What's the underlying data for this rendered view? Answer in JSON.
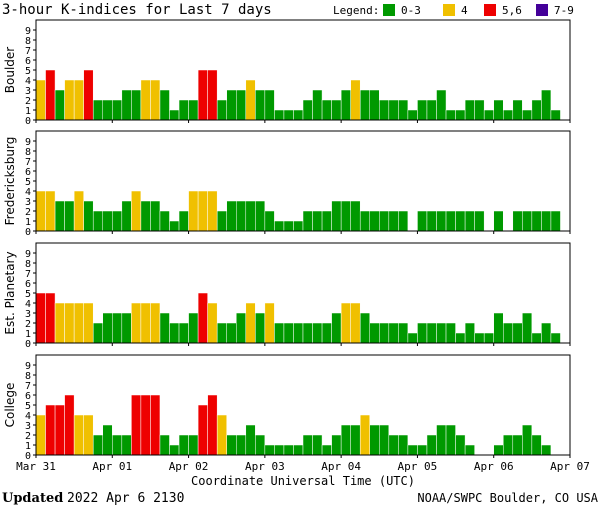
{
  "header": {
    "title": "3-hour K-indices for Last 7 days",
    "legend_title": "Legend:",
    "legend": [
      {
        "label": "0-3",
        "color": "#009900"
      },
      {
        "label": "4",
        "color": "#f0c000"
      },
      {
        "label": "5,6",
        "color": "#ee0000"
      },
      {
        "label": "7-9",
        "color": "#440099"
      }
    ]
  },
  "level_colors": [
    "#009900",
    "#009900",
    "#009900",
    "#009900",
    "#f0c000",
    "#ee0000",
    "#ee0000",
    "#440099",
    "#440099",
    "#440099"
  ],
  "chart_data": [
    {
      "type": "bar",
      "ylabel": "Boulder",
      "ylim": [
        0,
        10
      ],
      "yticks": [
        0,
        1,
        2,
        3,
        4,
        5,
        6,
        7,
        8,
        9
      ],
      "values": [
        4,
        5,
        3,
        4,
        4,
        5,
        2,
        2,
        2,
        3,
        3,
        4,
        4,
        3,
        1,
        2,
        2,
        5,
        5,
        2,
        3,
        3,
        4,
        3,
        3,
        1,
        1,
        1,
        2,
        3,
        2,
        2,
        3,
        4,
        3,
        3,
        2,
        2,
        2,
        1,
        2,
        2,
        3,
        1,
        1,
        2,
        2,
        1,
        2,
        1,
        2,
        1,
        2,
        3,
        1,
        0
      ]
    },
    {
      "type": "bar",
      "ylabel": "Fredericksburg",
      "ylim": [
        0,
        10
      ],
      "yticks": [
        0,
        1,
        2,
        3,
        4,
        5,
        6,
        7,
        8,
        9
      ],
      "values": [
        4,
        4,
        3,
        3,
        4,
        3,
        2,
        2,
        2,
        3,
        4,
        3,
        3,
        2,
        1,
        2,
        4,
        4,
        4,
        2,
        3,
        3,
        3,
        3,
        2,
        1,
        1,
        1,
        2,
        2,
        2,
        3,
        3,
        3,
        2,
        2,
        2,
        2,
        2,
        0,
        2,
        2,
        2,
        2,
        2,
        2,
        2,
        0,
        2,
        0,
        2,
        2,
        2,
        2,
        2,
        0
      ]
    },
    {
      "type": "bar",
      "ylabel": "Est. Planetary",
      "ylim": [
        0,
        10
      ],
      "yticks": [
        0,
        1,
        2,
        3,
        4,
        5,
        6,
        7,
        8,
        9
      ],
      "values": [
        5,
        5,
        4,
        4,
        4,
        4,
        2,
        3,
        3,
        3,
        4,
        4,
        4,
        3,
        2,
        2,
        3,
        5,
        4,
        2,
        2,
        3,
        4,
        3,
        4,
        2,
        2,
        2,
        2,
        2,
        2,
        3,
        4,
        4,
        3,
        2,
        2,
        2,
        2,
        1,
        2,
        2,
        2,
        2,
        1,
        2,
        1,
        1,
        3,
        2,
        2,
        3,
        1,
        2,
        1,
        0
      ]
    },
    {
      "type": "bar",
      "ylabel": "College",
      "ylim": [
        0,
        10
      ],
      "yticks": [
        0,
        1,
        2,
        3,
        4,
        5,
        6,
        7,
        8,
        9
      ],
      "values": [
        4,
        5,
        5,
        6,
        4,
        4,
        2,
        3,
        2,
        2,
        6,
        6,
        6,
        2,
        1,
        2,
        2,
        5,
        6,
        4,
        2,
        2,
        3,
        2,
        1,
        1,
        1,
        1,
        2,
        2,
        1,
        2,
        3,
        3,
        4,
        3,
        3,
        2,
        2,
        1,
        1,
        2,
        3,
        3,
        2,
        1,
        0,
        0,
        1,
        2,
        2,
        3,
        2,
        1,
        0,
        0
      ],
      "xticks": [
        "Mar 31",
        "Apr 01",
        "Apr 02",
        "Apr 03",
        "Apr 04",
        "Apr 05",
        "Apr 06",
        "Apr 07"
      ],
      "xlabel": "Coordinate Universal Time (UTC)"
    }
  ],
  "footer": {
    "updated": "Updated",
    "time": "2022 Apr  6 2130",
    "source": "NOAA/SWPC Boulder, CO USA"
  }
}
